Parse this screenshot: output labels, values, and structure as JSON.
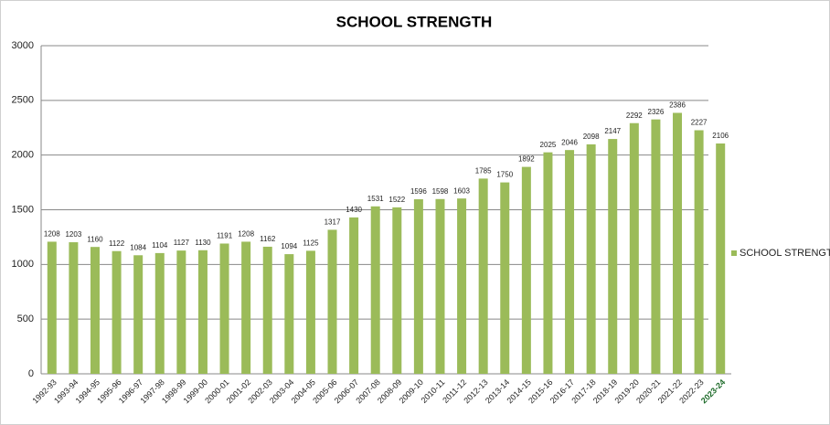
{
  "chart_data": {
    "type": "bar",
    "title": "SCHOOL STRENGTH",
    "categories": [
      "1992-93",
      "1993-94",
      "1994-95",
      "1995-96",
      "1996-97",
      "1997-98",
      "1998-99",
      "1999-00",
      "2000-01",
      "2001-02",
      "2002-03",
      "2003-04",
      "2004-05",
      "2005-06",
      "2006-07",
      "2007-08",
      "2008-09",
      "2009-10",
      "2010-11",
      "2011-12",
      "2012-13",
      "2013-14",
      "2014-15",
      "2015-16",
      "2016-17",
      "2017-18",
      "2018-19",
      "2019-20",
      "2020-21",
      "2021-22",
      "2022-23",
      "2023-24"
    ],
    "series": [
      {
        "name": "SCHOOL STRENGTH",
        "color": "#9bbb59",
        "values": [
          1208,
          1203,
          1160,
          1122,
          1084,
          1104,
          1127,
          1130,
          1191,
          1208,
          1162,
          1094,
          1125,
          1317,
          1430,
          1531,
          1522,
          1596,
          1598,
          1603,
          1785,
          1750,
          1892,
          2025,
          2046,
          2098,
          2147,
          2292,
          2326,
          2386,
          2227,
          2106
        ]
      }
    ],
    "ylim": [
      0,
      3000
    ],
    "yticks": [
      0,
      500,
      1000,
      1500,
      2000,
      2500,
      3000
    ],
    "grid": true,
    "legend": "right"
  }
}
